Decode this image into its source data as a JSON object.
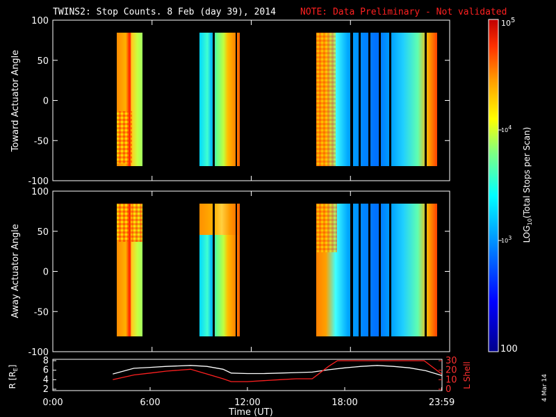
{
  "title": {
    "main": "TWINS2: Stop Counts.  8 Feb (day  39), 2014",
    "note": "NOTE: Data Preliminary - Not validated"
  },
  "date_stamp": "4 Mar 14",
  "colors": {
    "background": "#000000",
    "axes": "#ffffff",
    "note": "#ff2020",
    "lshell_line": "#ff2020",
    "r_line": "#ffffff"
  },
  "chart_data": [
    {
      "type": "heatmap",
      "panel": "top",
      "ylabel": "Toward Actuator Angle",
      "ylim": [
        -100,
        100
      ],
      "yticks": [
        100,
        50,
        0,
        -50,
        -100
      ],
      "xlim_hours": [
        0,
        24
      ],
      "data_angle_range": [
        -90,
        90
      ],
      "blocks": [
        {
          "start": "3:40",
          "end": "5:30",
          "level": "high"
        },
        {
          "start": "8:50",
          "end": "11:25",
          "level": "medium"
        },
        {
          "start": "16:00",
          "end": "23:59",
          "level": "mixed"
        }
      ]
    },
    {
      "type": "heatmap",
      "panel": "middle",
      "ylabel": "Away Actuator Angle",
      "ylim": [
        -100,
        100
      ],
      "yticks": [
        100,
        50,
        0,
        -50,
        -100
      ],
      "xlim_hours": [
        0,
        24
      ],
      "data_angle_range": [
        -90,
        90
      ],
      "blocks": [
        {
          "start": "3:40",
          "end": "5:30",
          "level": "high"
        },
        {
          "start": "8:50",
          "end": "11:25",
          "level": "medium"
        },
        {
          "start": "16:00",
          "end": "23:59",
          "level": "mixed"
        }
      ]
    },
    {
      "type": "line",
      "panel": "bottom",
      "ylabel_left": "R [R",
      "ylabel_left_sub": "E",
      "ylabel_left_end": "]",
      "ylabel_right": "L Shell",
      "ylim_left": [
        2,
        8
      ],
      "yticks_left": [
        2,
        4,
        6,
        8
      ],
      "ylim_right": [
        0,
        30
      ],
      "yticks_right": [
        0,
        10,
        20,
        30
      ],
      "xlabel": "Time (UT)",
      "xticks": [
        "0:00",
        "6:00",
        "12:00",
        "18:00",
        "23:59"
      ],
      "series": [
        {
          "axis": "left",
          "x_hours": [
            3.7,
            5.0,
            6.0,
            7.0,
            8.5,
            9.5,
            10.5,
            11.0,
            12.0,
            13.0,
            14.0,
            15.0,
            16.0,
            17.0,
            18.0,
            19.0,
            20.0,
            21.0,
            22.0,
            23.0,
            23.98
          ],
          "values": [
            5.2,
            6.4,
            6.6,
            6.8,
            7.0,
            6.8,
            6.2,
            5.4,
            5.3,
            5.3,
            5.4,
            5.5,
            5.6,
            6.1,
            6.5,
            6.8,
            7.0,
            6.8,
            6.5,
            5.9,
            4.9
          ]
        },
        {
          "axis": "right",
          "x_hours": [
            3.7,
            5.0,
            6.0,
            7.0,
            8.5,
            9.5,
            10.5,
            11.0,
            12.0,
            13.0,
            14.0,
            15.0,
            16.0,
            17.0,
            17.55,
            22.9,
            23.98
          ],
          "values": [
            10,
            15,
            17,
            19,
            21,
            16,
            11,
            8,
            8,
            9,
            10,
            11,
            11,
            24,
            30,
            30,
            16
          ]
        }
      ]
    }
  ],
  "colorbar": {
    "label_pre": "LOG",
    "label_sub": "10",
    "label_post": "(Total Stops per Scan)",
    "tick_top_base": "10",
    "tick_top_exp": "5",
    "tick_4_base": "10",
    "tick_4_exp": "4",
    "tick_3_base": "10",
    "tick_3_exp": "3",
    "tick_bottom": "100"
  }
}
